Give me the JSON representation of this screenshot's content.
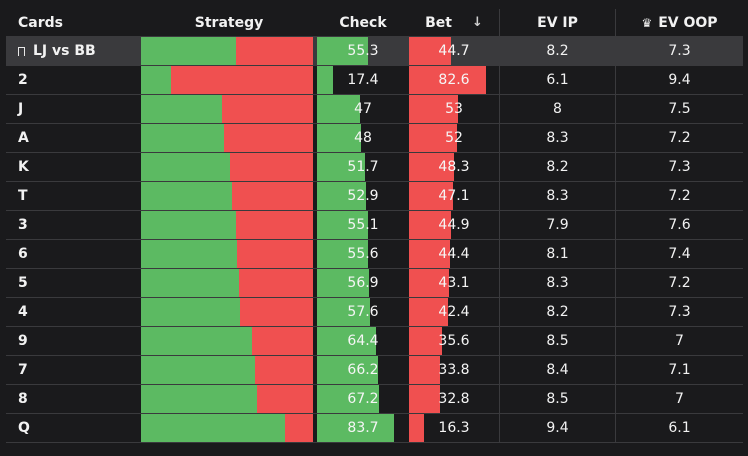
{
  "header": {
    "cards": "Cards",
    "strategy": "Strategy",
    "check": "Check",
    "bet": "Bet",
    "sort_icon": "arrow-down-icon",
    "ev_ip": "EV IP",
    "ev_oop_icon": "crown-icon",
    "ev_oop": "EV OOP"
  },
  "summary": {
    "icon": "bookmark-icon",
    "label": "LJ vs BB",
    "check": "55.3",
    "bet": "44.7",
    "ev_ip": "8.2",
    "ev_oop": "7.3"
  },
  "rows": [
    {
      "card": "2",
      "check": "17.4",
      "bet": "82.6",
      "ev_ip": "6.1",
      "ev_oop": "9.4"
    },
    {
      "card": "J",
      "check": "47",
      "bet": "53",
      "ev_ip": "8",
      "ev_oop": "7.5"
    },
    {
      "card": "A",
      "check": "48",
      "bet": "52",
      "ev_ip": "8.3",
      "ev_oop": "7.2"
    },
    {
      "card": "K",
      "check": "51.7",
      "bet": "48.3",
      "ev_ip": "8.2",
      "ev_oop": "7.3"
    },
    {
      "card": "T",
      "check": "52.9",
      "bet": "47.1",
      "ev_ip": "8.3",
      "ev_oop": "7.2"
    },
    {
      "card": "3",
      "check": "55.1",
      "bet": "44.9",
      "ev_ip": "7.9",
      "ev_oop": "7.6"
    },
    {
      "card": "6",
      "check": "55.6",
      "bet": "44.4",
      "ev_ip": "8.1",
      "ev_oop": "7.4"
    },
    {
      "card": "5",
      "check": "56.9",
      "bet": "43.1",
      "ev_ip": "8.3",
      "ev_oop": "7.2"
    },
    {
      "card": "4",
      "check": "57.6",
      "bet": "42.4",
      "ev_ip": "8.2",
      "ev_oop": "7.3"
    },
    {
      "card": "9",
      "check": "64.4",
      "bet": "35.6",
      "ev_ip": "8.5",
      "ev_oop": "7"
    },
    {
      "card": "7",
      "check": "66.2",
      "bet": "33.8",
      "ev_ip": "8.4",
      "ev_oop": "7.1"
    },
    {
      "card": "8",
      "check": "67.2",
      "bet": "32.8",
      "ev_ip": "8.5",
      "ev_oop": "7"
    },
    {
      "card": "Q",
      "check": "83.7",
      "bet": "16.3",
      "ev_ip": "9.4",
      "ev_oop": "6.1"
    }
  ],
  "colors": {
    "check": "#5cba62",
    "bet": "#f05050"
  }
}
